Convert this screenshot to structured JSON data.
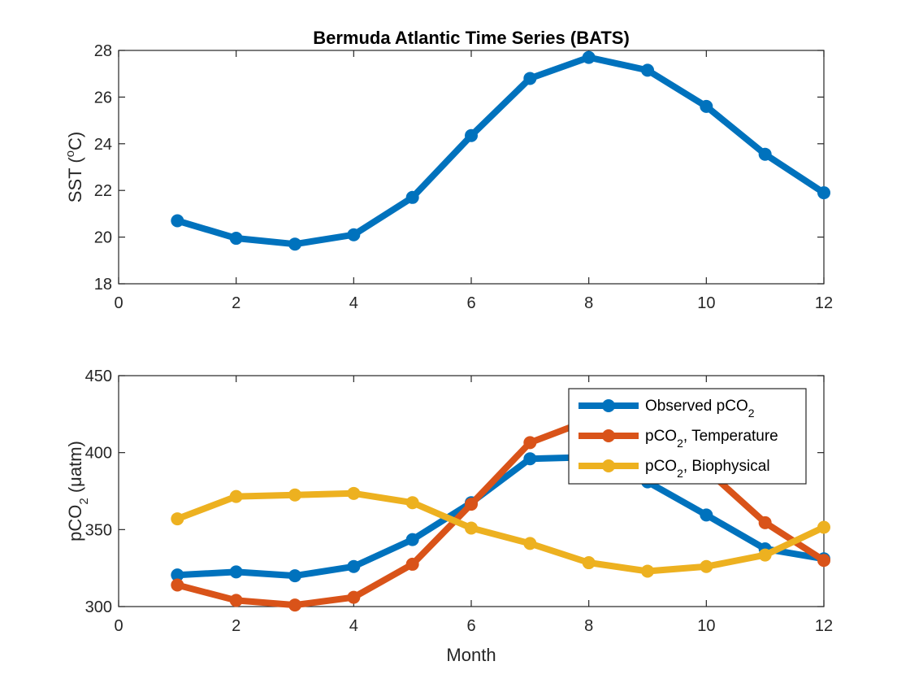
{
  "chart_data": [
    {
      "type": "line",
      "title": "Bermuda Atlantic Time Series (BATS)",
      "xlabel": "",
      "ylabel": "SST (°C)",
      "ylabel_parts": {
        "base": "SST (",
        "sup": "o",
        "tail": "C)"
      },
      "xlim": [
        0,
        12
      ],
      "ylim": [
        18,
        28
      ],
      "xticks": [
        0,
        2,
        4,
        6,
        8,
        10,
        12
      ],
      "yticks": [
        18,
        20,
        22,
        24,
        26,
        28
      ],
      "grid": false,
      "series": [
        {
          "color": "#0072BD",
          "x": [
            1,
            2,
            3,
            4,
            5,
            6,
            7,
            8,
            9,
            10,
            11,
            12
          ],
          "y": [
            20.7,
            19.95,
            19.7,
            20.1,
            21.7,
            24.35,
            26.8,
            27.7,
            27.15,
            25.6,
            23.55,
            21.9
          ]
        }
      ]
    },
    {
      "type": "line",
      "title": "",
      "xlabel": "Month",
      "ylabel": "pCO2 (μatm)",
      "ylabel_parts": {
        "base": "pCO",
        "sub": "2",
        "tail": " (μatm)"
      },
      "xlim": [
        0,
        12
      ],
      "ylim": [
        300,
        450
      ],
      "xticks": [
        0,
        2,
        4,
        6,
        8,
        10,
        12
      ],
      "yticks": [
        300,
        350,
        400,
        450
      ],
      "grid": false,
      "legend_position": "top-right",
      "series": [
        {
          "name": "Observed pCO2",
          "label_parts": {
            "base": "Observed pCO",
            "sub": "2",
            "tail": ""
          },
          "color": "#0072BD",
          "x": [
            1,
            2,
            3,
            4,
            5,
            6,
            7,
            8,
            9,
            10,
            11,
            12
          ],
          "y": [
            320.5,
            322.5,
            320,
            326,
            343.5,
            367.5,
            396,
            397,
            381,
            359.5,
            337.5,
            331
          ]
        },
        {
          "name": "pCO2, Temperature",
          "label_parts": {
            "base": "pCO",
            "sub": "2",
            "tail": ", Temperature"
          },
          "color": "#D95319",
          "x": [
            1,
            2,
            3,
            4,
            5,
            6,
            7,
            8,
            9,
            10,
            11,
            12
          ],
          "y": [
            314,
            304,
            301,
            306,
            327.5,
            366.5,
            406.5,
            421,
            412,
            389,
            354.5,
            330
          ]
        },
        {
          "name": "pCO2, Biophysical",
          "label_parts": {
            "base": "pCO",
            "sub": "2",
            "tail": ", Biophysical"
          },
          "color": "#EDB120",
          "x": [
            1,
            2,
            3,
            4,
            5,
            6,
            7,
            8,
            9,
            10,
            11,
            12
          ],
          "y": [
            357,
            371.5,
            372.5,
            373.5,
            367.5,
            351,
            341,
            328.5,
            323,
            326,
            333.5,
            351.5
          ]
        }
      ]
    }
  ]
}
